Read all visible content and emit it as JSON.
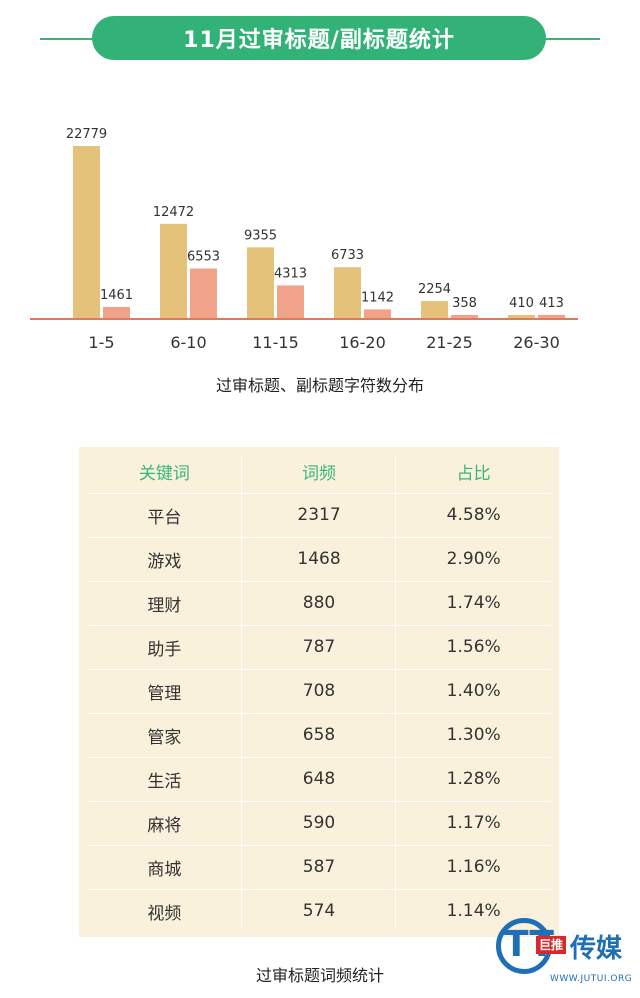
{
  "header": {
    "title": "11月过审标题/副标题统计"
  },
  "chart_data": [
    {
      "type": "bar",
      "categories": [
        "1-5",
        "6-10",
        "11-15",
        "16-20",
        "21-25",
        "26-30"
      ],
      "series": [
        {
          "values": [
            22779,
            12472,
            9355,
            6733,
            2254,
            410
          ]
        },
        {
          "values": [
            1461,
            6553,
            4313,
            1142,
            358,
            413
          ]
        }
      ],
      "title": "过审标题、副标题字符数分布",
      "xlabel": "",
      "ylabel": "",
      "ylim": [
        0,
        22779
      ],
      "colors": [
        "#e5c27a",
        "#f0a389"
      ],
      "axis_color": "#e07a5f"
    },
    {
      "type": "table",
      "title": "过审标题词频统计",
      "columns": [
        "关键词",
        "词频",
        "占比"
      ],
      "rows": [
        [
          "平台",
          "2317",
          "4.58%"
        ],
        [
          "游戏",
          "1468",
          "2.90%"
        ],
        [
          "理财",
          "880",
          "1.74%"
        ],
        [
          "助手",
          "787",
          "1.56%"
        ],
        [
          "管理",
          "708",
          "1.40%"
        ],
        [
          "管家",
          "658",
          "1.30%"
        ],
        [
          "生活",
          "648",
          "1.28%"
        ],
        [
          "麻将",
          "590",
          "1.17%"
        ],
        [
          "商城",
          "587",
          "1.16%"
        ],
        [
          "视频",
          "574",
          "1.14%"
        ]
      ]
    }
  ],
  "logo": {
    "mark": "TT",
    "badge": "巨推",
    "text": "传媒",
    "url": "WWW.JUTUI.ORG"
  }
}
